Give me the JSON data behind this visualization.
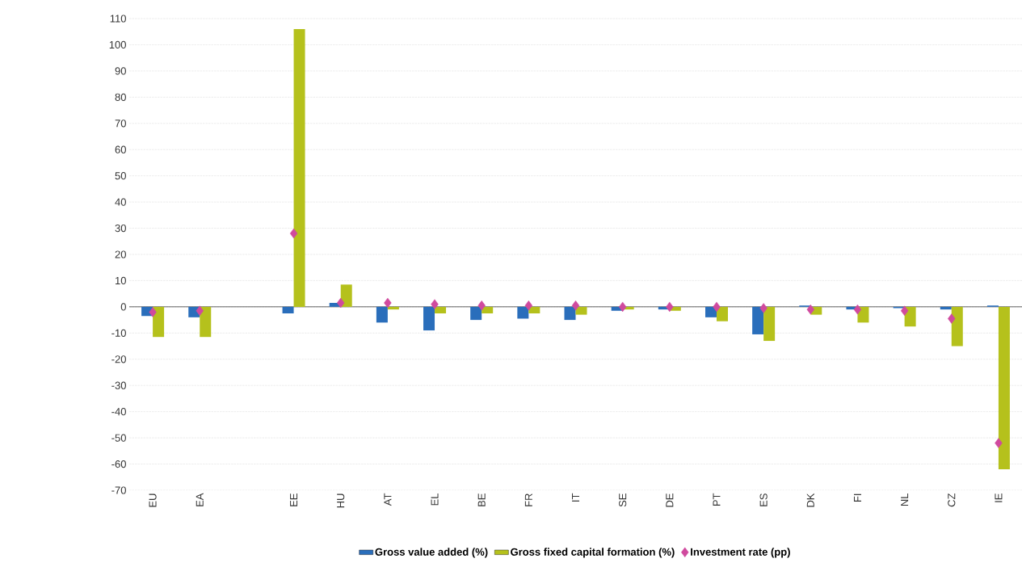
{
  "chart_data": {
    "type": "bar",
    "categories": [
      "EU",
      "EA",
      null,
      "EE",
      "HU",
      "AT",
      "EL",
      "BE",
      "FR",
      "IT",
      "SE",
      "DE",
      "PT",
      "ES",
      "DK",
      "FI",
      "NL",
      "CZ",
      "IE"
    ],
    "series": [
      {
        "name": "Gross value added (%)",
        "color": "#2a6ebb",
        "values": [
          -3.5,
          -4,
          null,
          -2.5,
          1.5,
          -6,
          -9,
          -5,
          -4.5,
          -5,
          -1.5,
          -1,
          -4,
          -10.5,
          0.5,
          -1,
          -0.5,
          -1,
          0.5
        ]
      },
      {
        "name": "Gross fixed capital formation (%)",
        "color": "#b5c11c",
        "values": [
          -11.5,
          -11.5,
          null,
          106,
          8.5,
          -1,
          -2.5,
          -2.5,
          -2.5,
          -3,
          -1,
          -1.5,
          -5.5,
          -13,
          -3,
          -6,
          -7.5,
          -15,
          -62
        ]
      },
      {
        "name": "Investment rate (pp)",
        "type": "scatter",
        "marker": "diamond",
        "color": "#d04a9e",
        "values": [
          -2,
          -1.5,
          null,
          28,
          1.5,
          1.5,
          1,
          0.5,
          0.5,
          0.5,
          0,
          0,
          0,
          -0.5,
          -1,
          -1,
          -1.5,
          -4.5,
          -52
        ]
      }
    ],
    "ylim": [
      -70,
      110
    ],
    "yticks": [
      -70,
      -60,
      -50,
      -40,
      -30,
      -20,
      -10,
      0,
      10,
      20,
      30,
      40,
      50,
      60,
      70,
      80,
      90,
      100,
      110
    ],
    "grid": "y",
    "legend": "bottom"
  }
}
